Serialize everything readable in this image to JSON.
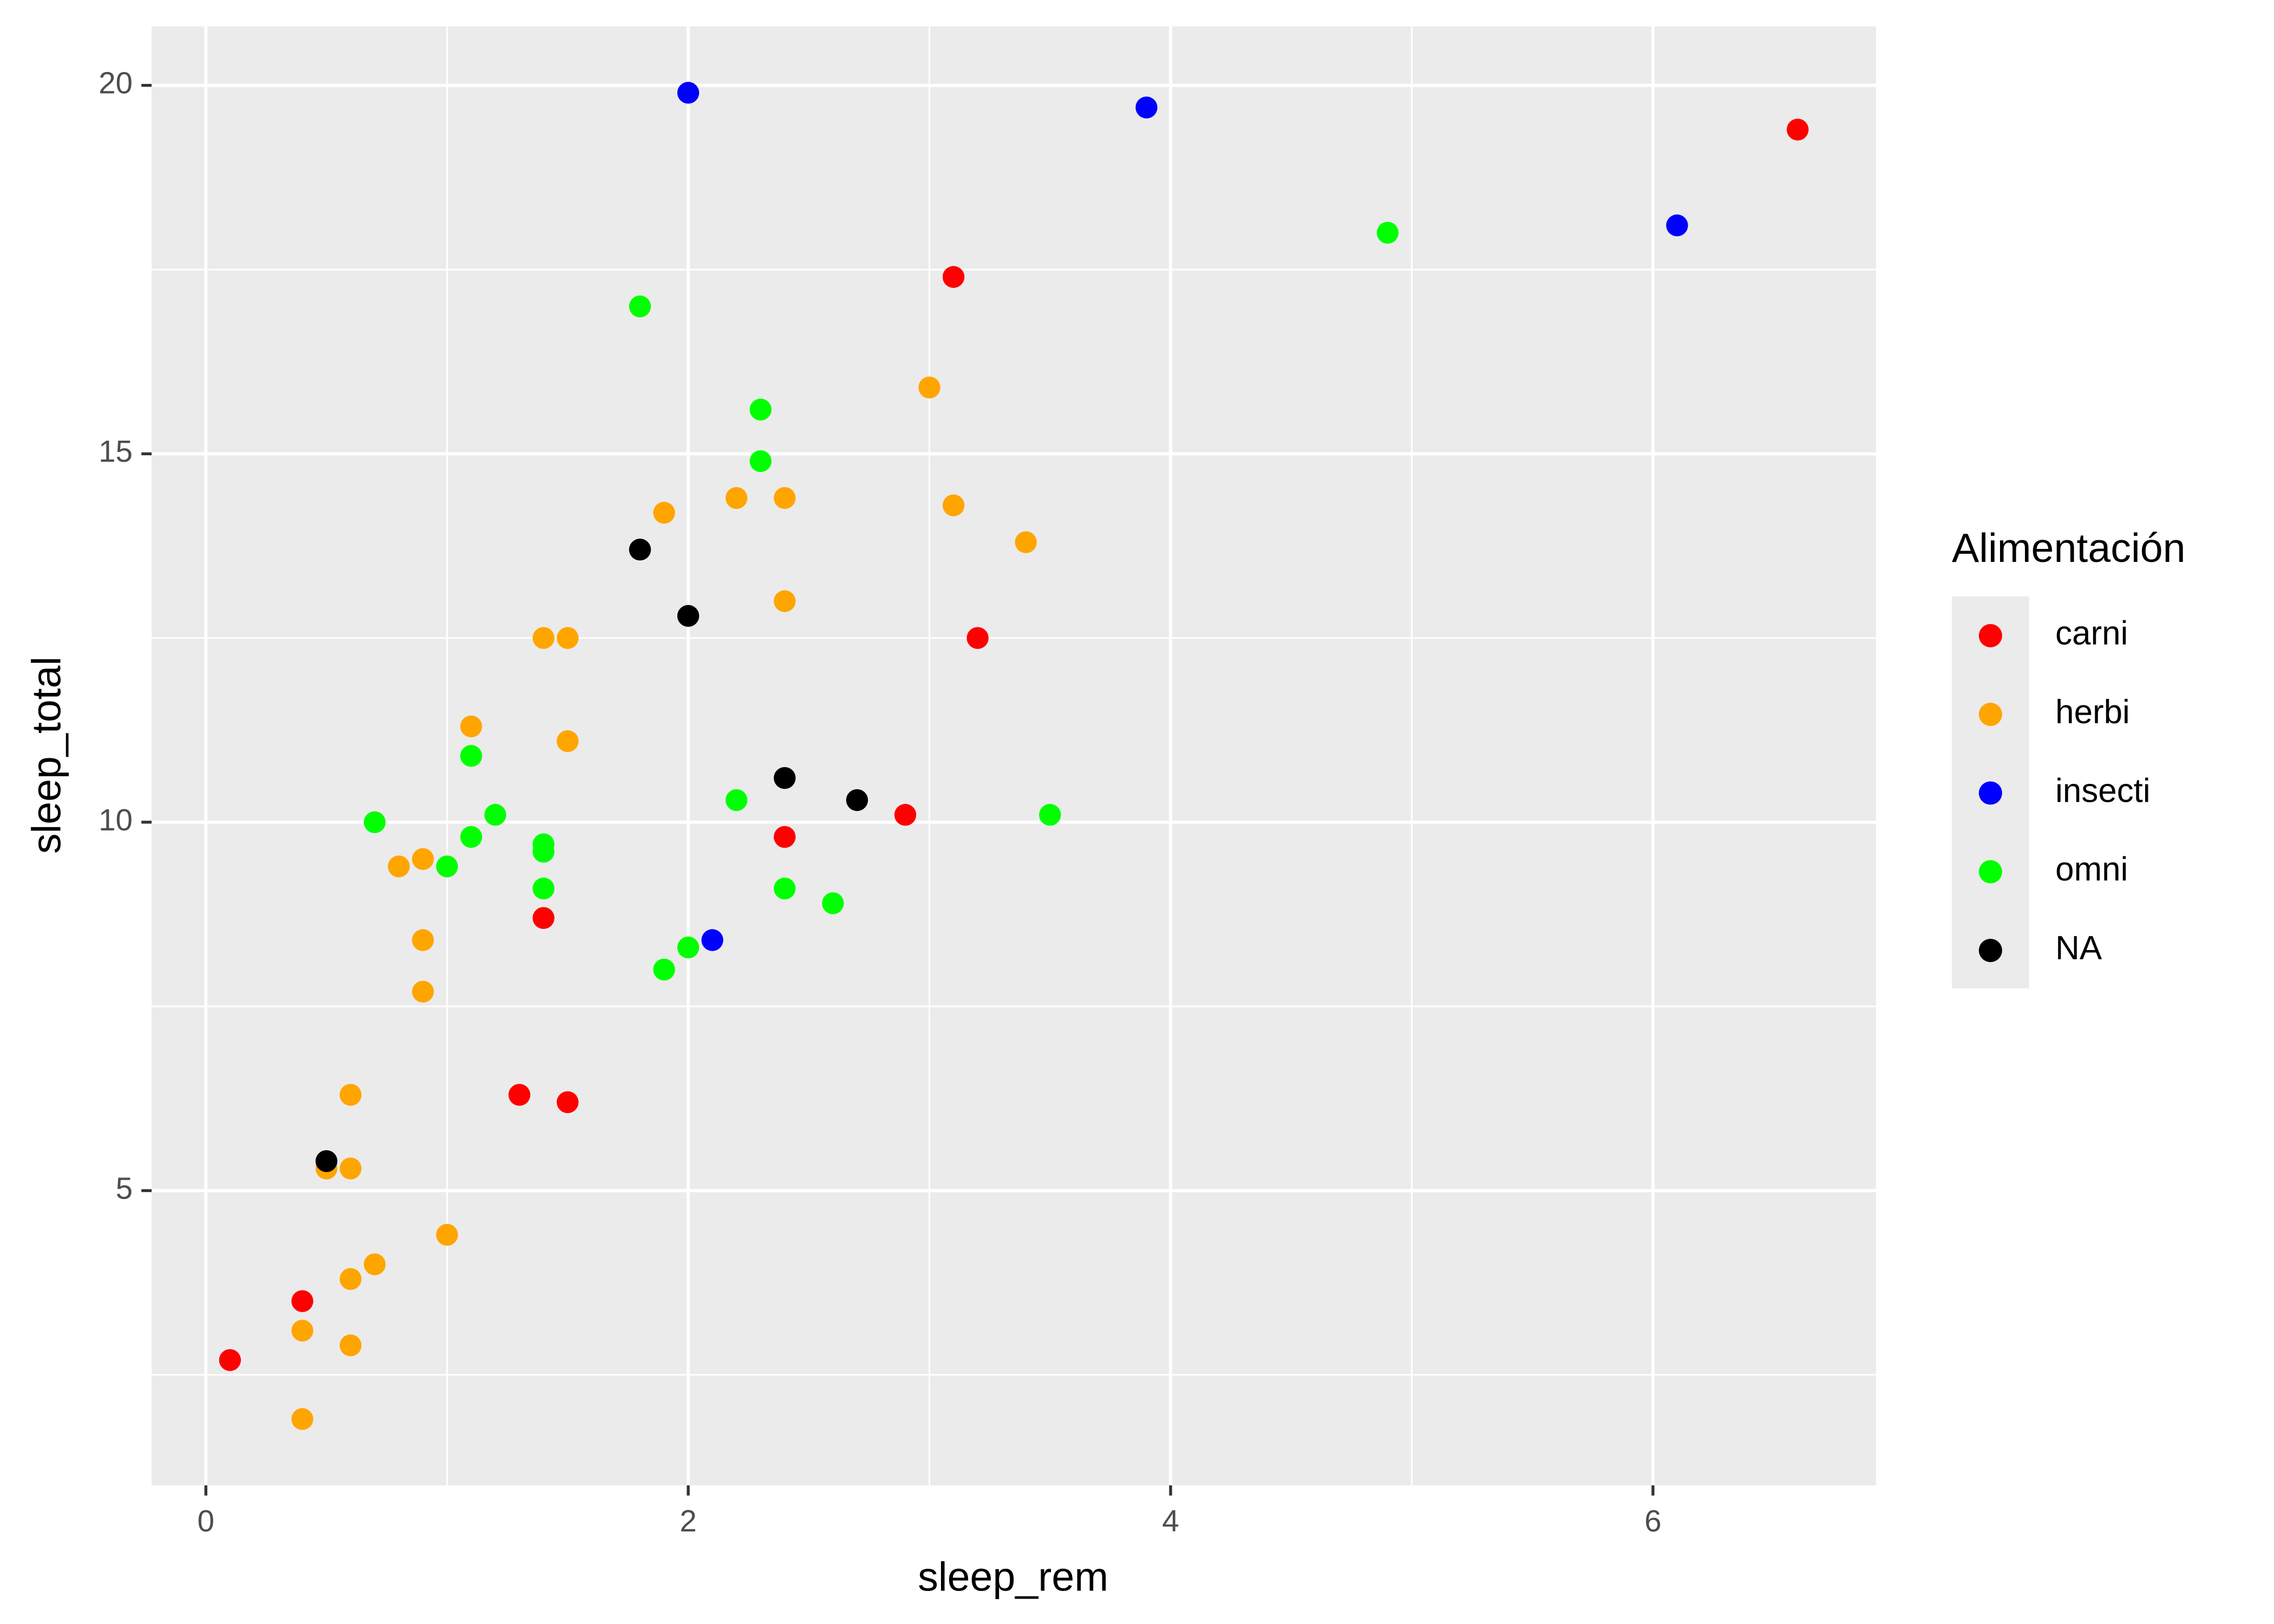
{
  "chart_data": {
    "type": "scatter",
    "x_label": "sleep_rem",
    "y_label": "sleep_total",
    "legend_title": "Alimentación",
    "legend_position": "right",
    "xlim": [
      -0.225,
      6.925
    ],
    "ylim": [
      1.0,
      20.8
    ],
    "xticks": [
      0,
      2,
      4,
      6
    ],
    "yticks": [
      5,
      10,
      15,
      20
    ],
    "minor_xticks": [
      1,
      3,
      5
    ],
    "minor_yticks": [
      2.5,
      7.5,
      12.5,
      17.5
    ],
    "grid": true,
    "series": [
      {
        "name": "carni",
        "color": "#ff0000",
        "x": [
          0.1,
          0.4,
          1.3,
          1.5,
          1.4,
          2.4,
          2.9,
          3.2,
          3.1,
          6.6
        ],
        "values": [
          2.7,
          3.5,
          6.3,
          6.2,
          8.7,
          9.8,
          10.1,
          12.5,
          17.4,
          19.4
        ]
      },
      {
        "name": "herbi",
        "color": "#ffa500",
        "x": [
          0.4,
          0.4,
          0.6,
          0.6,
          0.7,
          1.0,
          0.5,
          0.6,
          0.6,
          0.9,
          0.9,
          0.8,
          0.9,
          1.1,
          1.5,
          1.4,
          1.5,
          1.9,
          2.2,
          2.4,
          2.4,
          3.0,
          3.1,
          3.4
        ],
        "values": [
          1.9,
          3.1,
          2.9,
          3.8,
          4.0,
          4.4,
          5.3,
          5.3,
          6.3,
          7.7,
          8.4,
          9.4,
          9.5,
          11.3,
          11.1,
          12.5,
          12.5,
          14.2,
          14.4,
          14.4,
          13.0,
          15.9,
          14.3,
          13.8
        ]
      },
      {
        "name": "insecti",
        "color": "#0000ff",
        "x": [
          2.0,
          3.9,
          6.1,
          2.1
        ],
        "values": [
          19.9,
          19.7,
          18.1,
          8.4
        ]
      },
      {
        "name": "omni",
        "color": "#00ff00",
        "x": [
          0.7,
          1.0,
          1.1,
          1.1,
          1.2,
          1.4,
          1.4,
          1.4,
          1.8,
          1.9,
          2.0,
          2.2,
          2.3,
          2.3,
          2.4,
          2.6,
          3.5,
          4.9
        ],
        "values": [
          10.0,
          9.4,
          9.8,
          10.9,
          10.1,
          9.7,
          9.6,
          9.1,
          17.0,
          8.0,
          8.3,
          10.3,
          15.6,
          14.9,
          9.1,
          8.9,
          10.1,
          18.0
        ]
      },
      {
        "name": "NA",
        "color": "#000000",
        "x": [
          0.5,
          1.8,
          2.0,
          2.4,
          2.7
        ],
        "values": [
          5.4,
          13.7,
          12.8,
          10.6,
          10.3
        ]
      }
    ]
  }
}
